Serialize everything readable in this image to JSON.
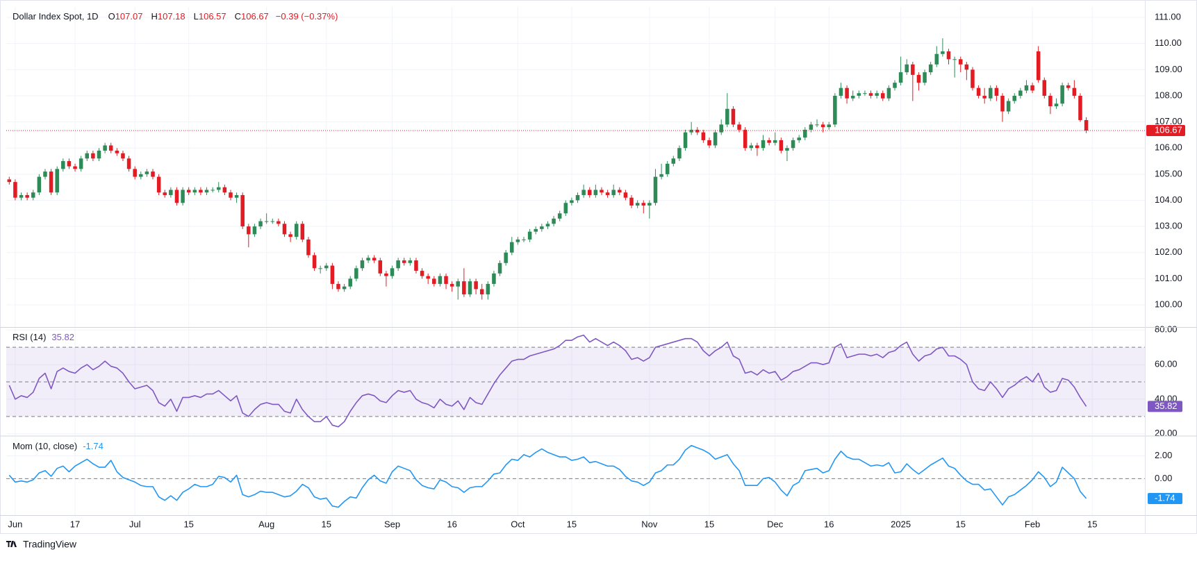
{
  "chart_data": [
    {
      "type": "candlestick",
      "title": "Dollar Index Spot, 1D",
      "ohlc_labels": [
        "O",
        "H",
        "L",
        "C"
      ],
      "change": "−0.39 (−0.37%)",
      "up_color": "#2e8b57",
      "down_color": "#e31b23",
      "xlim": [
        -0.5,
        189.8
      ],
      "xticks": [
        {
          "value": 1,
          "label": "Jun"
        },
        {
          "value": 11,
          "label": "17"
        },
        {
          "value": 21,
          "label": "Jul"
        },
        {
          "value": 30,
          "label": "15"
        },
        {
          "value": 43,
          "label": "Aug"
        },
        {
          "value": 53,
          "label": "15"
        },
        {
          "value": 64,
          "label": "Sep"
        },
        {
          "value": 74,
          "label": "16"
        },
        {
          "value": 85,
          "label": "Oct"
        },
        {
          "value": 94,
          "label": "15"
        },
        {
          "value": 107,
          "label": "Nov"
        },
        {
          "value": 117,
          "label": "15"
        },
        {
          "value": 128,
          "label": "Dec"
        },
        {
          "value": 137,
          "label": "16"
        },
        {
          "value": 149,
          "label": "2025"
        },
        {
          "value": 159,
          "label": "15"
        },
        {
          "value": 171,
          "label": "Feb"
        },
        {
          "value": 181,
          "label": "15"
        }
      ],
      "ylim": [
        99.15,
        111.4
      ],
      "yticks": [
        {
          "value": 100,
          "label": "100.00"
        },
        {
          "value": 101,
          "label": "101.00"
        },
        {
          "value": 102,
          "label": "102.00"
        },
        {
          "value": 103,
          "label": "103.00"
        },
        {
          "value": 104,
          "label": "104.00"
        },
        {
          "value": 105,
          "label": "105.00"
        },
        {
          "value": 106,
          "label": "106.00"
        },
        {
          "value": 107,
          "label": "107.00"
        },
        {
          "value": 108,
          "label": "108.00"
        },
        {
          "value": 109,
          "label": "109.00"
        },
        {
          "value": 110,
          "label": "110.00"
        },
        {
          "value": 111,
          "label": "111.00"
        }
      ],
      "grid": true,
      "open": [
        104.8,
        104.7,
        104.1,
        104.2,
        104.1,
        104.3,
        104.9,
        105.1,
        104.3,
        105.2,
        105.5,
        105.3,
        105.2,
        105.6,
        105.8,
        105.6,
        105.9,
        106.1,
        105.9,
        105.8,
        105.6,
        105.2,
        104.9,
        105.0,
        105.1,
        104.9,
        104.3,
        104.2,
        104.4,
        103.9,
        104.4,
        104.3,
        104.4,
        104.3,
        104.4,
        104.4,
        104.5,
        104.3,
        104.1,
        104.2,
        103.0,
        102.7,
        103.0,
        103.2,
        103.2,
        103.2,
        103.1,
        102.7,
        102.6,
        103.1,
        102.5,
        101.9,
        101.4,
        101.4,
        101.5,
        100.8,
        100.6,
        100.7,
        101.0,
        101.4,
        101.7,
        101.8,
        101.7,
        101.2,
        101.1,
        101.4,
        101.7,
        101.6,
        101.7,
        101.3,
        101.1,
        101.0,
        100.8,
        101.1,
        100.8,
        100.7,
        100.9,
        100.4,
        100.9,
        100.6,
        100.4,
        100.8,
        101.2,
        101.6,
        102.0,
        102.4,
        102.5,
        102.5,
        102.8,
        102.9,
        103.0,
        103.1,
        103.3,
        103.5,
        103.9,
        104.0,
        104.2,
        104.4,
        104.2,
        104.4,
        104.3,
        104.2,
        104.4,
        104.3,
        104.1,
        103.8,
        103.9,
        103.8,
        103.9,
        104.9,
        105.0,
        105.4,
        105.6,
        106.0,
        106.6,
        106.7,
        106.6,
        106.3,
        106.1,
        106.6,
        106.9,
        107.5,
        106.9,
        106.7,
        106.0,
        106.1,
        106.0,
        106.3,
        106.2,
        106.3,
        105.9,
        106.0,
        106.3,
        106.4,
        106.7,
        106.9,
        106.9,
        106.8,
        106.9,
        108.0,
        108.3,
        107.9,
        108.0,
        108.1,
        108.1,
        108.0,
        108.1,
        107.9,
        108.3,
        108.5,
        108.9,
        109.2,
        108.8,
        108.5,
        108.9,
        109.2,
        109.6,
        109.7,
        109.4,
        109.4,
        109.2,
        109.0,
        108.3,
        108.0,
        107.9,
        108.3,
        108.0,
        107.4,
        107.8,
        108.0,
        108.2,
        108.4,
        109.7,
        108.6,
        108.0,
        107.6,
        107.7,
        108.4,
        108.3,
        108.0,
        107.07
      ],
      "high": [
        104.9,
        104.8,
        104.3,
        104.3,
        104.4,
        105.0,
        105.2,
        105.2,
        105.3,
        105.6,
        105.6,
        105.4,
        105.7,
        105.9,
        105.9,
        106.0,
        106.2,
        106.2,
        106.0,
        105.9,
        105.7,
        105.3,
        105.1,
        105.2,
        105.2,
        105.0,
        104.4,
        104.5,
        104.5,
        104.5,
        104.5,
        104.5,
        104.5,
        104.5,
        104.5,
        104.7,
        104.6,
        104.4,
        104.3,
        104.3,
        103.1,
        103.1,
        103.3,
        103.5,
        103.3,
        103.3,
        103.2,
        102.8,
        103.2,
        103.2,
        102.6,
        102.0,
        101.5,
        101.6,
        101.6,
        100.9,
        100.8,
        101.1,
        101.5,
        101.8,
        101.9,
        101.9,
        101.8,
        101.3,
        101.5,
        101.8,
        101.8,
        101.8,
        101.8,
        101.4,
        101.2,
        101.1,
        101.2,
        101.2,
        100.9,
        101.0,
        101.4,
        101.0,
        101.0,
        100.8,
        100.9,
        101.3,
        101.7,
        102.1,
        102.6,
        102.6,
        102.6,
        102.9,
        103.0,
        103.1,
        103.2,
        103.4,
        103.6,
        104.0,
        104.1,
        104.3,
        104.6,
        104.5,
        104.6,
        104.5,
        104.4,
        104.6,
        104.5,
        104.4,
        104.2,
        104.0,
        104.0,
        104.0,
        105.2,
        105.4,
        105.5,
        105.7,
        106.1,
        106.7,
        107.0,
        106.8,
        106.7,
        106.4,
        106.7,
        107.1,
        108.1,
        107.6,
        107.0,
        106.8,
        106.2,
        106.2,
        106.5,
        106.4,
        106.6,
        106.4,
        106.1,
        106.4,
        106.5,
        106.8,
        107.0,
        107.1,
        107.0,
        107.0,
        108.1,
        108.5,
        108.4,
        108.2,
        108.2,
        108.2,
        108.2,
        108.2,
        108.2,
        108.4,
        108.6,
        109.5,
        109.4,
        109.3,
        108.9,
        109.0,
        109.3,
        109.9,
        110.2,
        109.8,
        109.5,
        109.5,
        109.3,
        109.1,
        108.4,
        108.3,
        108.4,
        108.4,
        108.1,
        107.9,
        108.1,
        108.3,
        108.6,
        108.5,
        109.9,
        108.7,
        108.1,
        107.9,
        108.5,
        108.5,
        108.6,
        108.1,
        107.18
      ],
      "low": [
        104.6,
        104.0,
        104.0,
        104.0,
        104.0,
        104.2,
        104.8,
        104.2,
        104.2,
        105.1,
        105.2,
        105.1,
        105.1,
        105.5,
        105.5,
        105.5,
        105.8,
        105.8,
        105.7,
        105.5,
        105.1,
        104.8,
        104.8,
        104.9,
        104.8,
        104.2,
        104.1,
        104.1,
        103.8,
        103.8,
        104.2,
        104.2,
        104.2,
        104.2,
        104.3,
        104.3,
        104.2,
        104.0,
        103.9,
        102.9,
        102.2,
        102.6,
        102.9,
        103.1,
        103.1,
        103.0,
        102.6,
        102.4,
        102.5,
        102.4,
        101.8,
        101.3,
        101.2,
        101.3,
        100.6,
        100.5,
        100.5,
        100.6,
        100.9,
        101.3,
        101.6,
        101.6,
        101.1,
        100.7,
        101.0,
        101.3,
        101.5,
        101.5,
        101.2,
        101.0,
        100.8,
        100.7,
        100.7,
        100.6,
        100.5,
        100.2,
        100.3,
        100.3,
        100.4,
        100.2,
        100.2,
        100.7,
        101.1,
        101.5,
        101.9,
        102.3,
        102.4,
        102.4,
        102.7,
        102.8,
        102.9,
        103.0,
        103.2,
        103.4,
        103.8,
        103.9,
        104.1,
        104.1,
        104.1,
        104.2,
        104.1,
        104.1,
        104.2,
        104.0,
        103.7,
        103.7,
        103.5,
        103.3,
        103.8,
        104.8,
        104.9,
        105.3,
        105.5,
        105.9,
        106.5,
        106.5,
        106.2,
        106.0,
        106.0,
        106.5,
        106.8,
        106.8,
        106.6,
        105.9,
        105.9,
        105.7,
        105.9,
        106.1,
        106.1,
        105.8,
        105.5,
        105.9,
        106.2,
        106.3,
        106.6,
        106.8,
        106.6,
        106.7,
        106.8,
        107.9,
        107.7,
        107.8,
        107.9,
        108.0,
        107.9,
        107.9,
        107.8,
        107.8,
        108.2,
        108.4,
        108.8,
        107.8,
        108.2,
        108.4,
        108.8,
        109.1,
        109.5,
        109.2,
        108.7,
        108.9,
        108.6,
        108.2,
        107.9,
        107.7,
        107.8,
        107.8,
        107.0,
        107.3,
        107.7,
        107.9,
        108.1,
        108.1,
        108.5,
        107.9,
        107.3,
        107.5,
        107.6,
        108.2,
        107.9,
        107.0,
        106.57
      ],
      "close": [
        104.7,
        104.1,
        104.2,
        104.1,
        104.3,
        104.9,
        105.1,
        104.3,
        105.2,
        105.5,
        105.3,
        105.2,
        105.6,
        105.8,
        105.6,
        105.9,
        106.1,
        105.9,
        105.8,
        105.6,
        105.2,
        104.9,
        105.0,
        105.1,
        104.9,
        104.3,
        104.2,
        104.4,
        103.9,
        104.4,
        104.3,
        104.4,
        104.3,
        104.4,
        104.4,
        104.5,
        104.3,
        104.1,
        104.2,
        103.0,
        102.7,
        103.0,
        103.2,
        103.2,
        103.2,
        103.1,
        102.7,
        102.6,
        103.1,
        102.5,
        101.9,
        101.4,
        101.4,
        101.5,
        100.8,
        100.6,
        100.7,
        101.0,
        101.4,
        101.7,
        101.8,
        101.7,
        101.2,
        101.1,
        101.4,
        101.7,
        101.6,
        101.7,
        101.3,
        101.1,
        101.0,
        100.8,
        101.1,
        100.8,
        100.7,
        100.9,
        100.4,
        100.9,
        100.6,
        100.4,
        100.8,
        101.2,
        101.6,
        102.0,
        102.4,
        102.5,
        102.5,
        102.8,
        102.9,
        103.0,
        103.1,
        103.3,
        103.5,
        103.9,
        104.0,
        104.2,
        104.4,
        104.2,
        104.4,
        104.3,
        104.2,
        104.4,
        104.3,
        104.1,
        103.8,
        103.9,
        103.8,
        103.9,
        104.9,
        105.0,
        105.4,
        105.6,
        106.0,
        106.6,
        106.7,
        106.6,
        106.3,
        106.1,
        106.6,
        106.9,
        107.5,
        106.9,
        106.7,
        106.0,
        106.1,
        106.0,
        106.3,
        106.2,
        106.3,
        105.9,
        106.0,
        106.3,
        106.4,
        106.7,
        106.9,
        106.9,
        106.8,
        106.9,
        108.0,
        108.3,
        107.9,
        108.0,
        108.1,
        108.1,
        108.0,
        108.1,
        107.9,
        108.3,
        108.5,
        108.9,
        109.2,
        108.8,
        108.5,
        108.9,
        109.2,
        109.6,
        109.7,
        109.4,
        109.4,
        109.2,
        109.0,
        108.3,
        108.0,
        107.9,
        108.3,
        108.0,
        107.4,
        107.8,
        108.0,
        108.2,
        108.4,
        108.2,
        108.6,
        108.0,
        107.6,
        107.7,
        108.4,
        108.3,
        108.0,
        107.07,
        106.67
      ]
    },
    {
      "type": "line",
      "title": "RSI (14)",
      "color": "#7e57c2",
      "band_color": "rgba(126,87,194,0.10)",
      "ylim": [
        19.1,
        81.3
      ],
      "yticks": [
        {
          "value": 80,
          "label": "80.00"
        },
        {
          "value": 60,
          "label": "60.00"
        },
        {
          "value": 40,
          "label": "40.00"
        },
        {
          "value": 20,
          "label": "20.00"
        }
      ],
      "levels": [
        70,
        50,
        30
      ],
      "values": [
        48,
        40,
        42,
        41,
        44,
        52,
        55,
        46,
        56,
        58,
        56,
        55,
        58,
        60,
        57,
        59,
        62,
        59,
        58,
        55,
        50,
        46,
        47,
        48,
        45,
        38,
        36,
        40,
        33,
        41,
        41,
        42,
        41,
        43,
        43,
        45,
        42,
        39,
        42,
        32,
        30,
        34,
        37,
        38,
        37,
        37,
        33,
        32,
        40,
        34,
        30,
        27,
        27,
        30,
        25,
        24,
        27,
        33,
        38,
        42,
        43,
        42,
        39,
        38,
        42,
        45,
        44,
        45,
        40,
        38,
        37,
        35,
        40,
        37,
        36,
        39,
        34,
        41,
        38,
        37,
        43,
        49,
        54,
        58,
        62,
        63,
        63,
        65,
        66,
        67,
        68,
        69,
        71,
        74,
        74,
        76,
        77,
        73,
        75,
        73,
        71,
        73,
        71,
        68,
        63,
        64,
        62,
        64,
        70,
        71,
        72,
        73,
        74,
        75,
        75,
        73,
        68,
        65,
        68,
        70,
        73,
        65,
        63,
        55,
        56,
        54,
        57,
        55,
        56,
        51,
        53,
        56,
        57,
        59,
        61,
        61,
        60,
        61,
        70,
        72,
        64,
        65,
        66,
        66,
        65,
        66,
        64,
        67,
        68,
        71,
        73,
        66,
        62,
        65,
        66,
        69,
        70,
        65,
        65,
        63,
        60,
        50,
        46,
        45,
        50,
        46,
        41,
        46,
        48,
        51,
        53,
        50,
        55,
        47,
        44,
        45,
        52,
        51,
        47,
        41,
        35.82
      ]
    },
    {
      "type": "line",
      "title": "Mom (10, close)",
      "color": "#2196f3",
      "ylim": [
        -3.2,
        3.67
      ],
      "yticks": [
        {
          "value": 2,
          "label": "2.00"
        },
        {
          "value": 0,
          "label": "0.00"
        }
      ],
      "levels": [
        0
      ],
      "values": [
        0.3,
        -0.3,
        -0.2,
        -0.3,
        -0.1,
        0.5,
        0.7,
        0.2,
        0.9,
        1.1,
        0.6,
        1.1,
        1.4,
        1.7,
        1.3,
        1.0,
        1.0,
        1.6,
        0.6,
        0.1,
        -0.1,
        -0.3,
        -0.6,
        -0.7,
        -0.7,
        -1.6,
        -1.9,
        -1.5,
        -1.9,
        -1.2,
        -0.9,
        -0.5,
        -0.7,
        -0.7,
        -0.5,
        0.2,
        0.1,
        -0.3,
        0.3,
        -1.4,
        -1.6,
        -1.4,
        -1.1,
        -1.2,
        -1.2,
        -1.4,
        -1.6,
        -1.5,
        -1.1,
        -0.5,
        -0.8,
        -1.6,
        -1.8,
        -1.7,
        -2.4,
        -2.5,
        -2.0,
        -1.6,
        -1.7,
        -0.8,
        -0.1,
        0.3,
        -0.2,
        -0.4,
        0.6,
        1.1,
        0.9,
        0.7,
        -0.1,
        -0.6,
        -0.8,
        -0.9,
        -0.1,
        -0.3,
        -0.7,
        -0.8,
        -1.2,
        -0.8,
        -0.7,
        -0.7,
        -0.2,
        0.4,
        0.5,
        1.2,
        1.7,
        1.6,
        2.1,
        1.9,
        2.3,
        2.6,
        2.3,
        2.1,
        1.9,
        1.9,
        1.6,
        1.7,
        1.9,
        1.4,
        1.5,
        1.3,
        1.1,
        1.1,
        0.8,
        0.2,
        -0.2,
        -0.3,
        -0.6,
        -0.3,
        0.5,
        0.7,
        1.2,
        1.2,
        1.7,
        2.5,
        2.9,
        2.7,
        2.5,
        2.2,
        1.7,
        1.9,
        2.1,
        1.3,
        0.7,
        -0.6,
        -0.6,
        -0.6,
        0.0,
        0.1,
        -0.3,
        -1.0,
        -1.5,
        -0.6,
        -0.3,
        0.7,
        0.8,
        0.9,
        0.5,
        0.7,
        1.7,
        2.4,
        1.9,
        1.7,
        1.7,
        1.4,
        1.1,
        1.2,
        1.1,
        1.4,
        0.5,
        0.6,
        1.3,
        0.8,
        0.4,
        0.8,
        1.2,
        1.5,
        1.8,
        1.1,
        0.9,
        0.3,
        -0.2,
        -0.5,
        -0.5,
        -1.0,
        -0.9,
        -1.6,
        -2.3,
        -1.6,
        -1.4,
        -1.0,
        -0.6,
        -0.1,
        0.6,
        0.1,
        -0.7,
        -0.3,
        1.0,
        0.5,
        0.0,
        -1.13,
        -1.74
      ]
    }
  ],
  "branding": "TradingView"
}
